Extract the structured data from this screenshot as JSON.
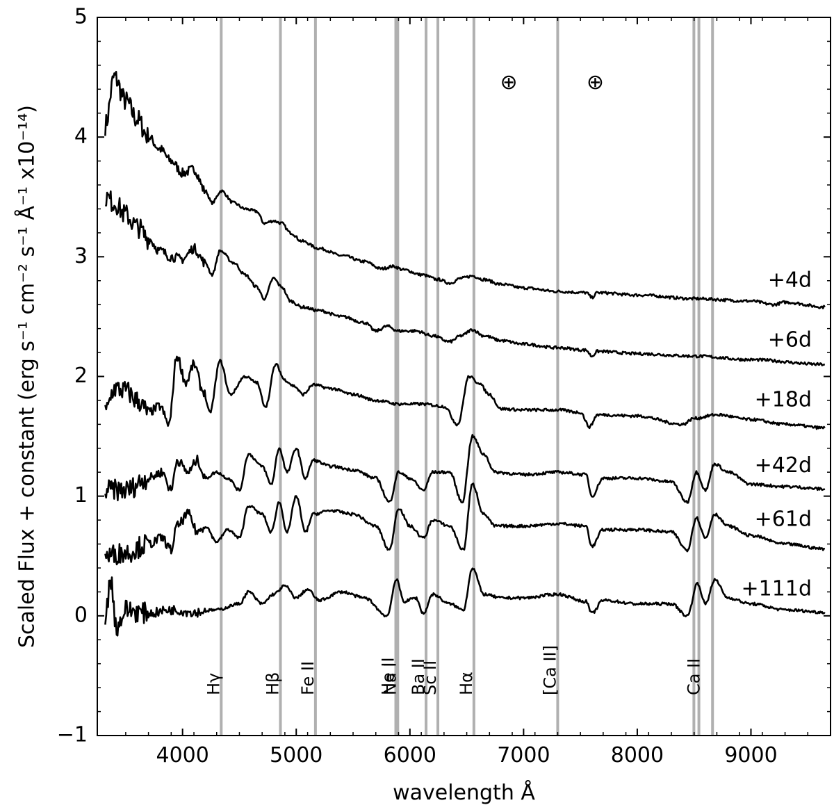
{
  "chart_data": {
    "type": "line",
    "xlabel": "wavelength Å",
    "ylabel": "Scaled Flux + constant (erg s⁻¹ cm⁻² s⁻¹ Å⁻¹ x10⁻¹⁴)",
    "xlim": [
      3250,
      9700
    ],
    "ylim": [
      -1,
      5
    ],
    "x_ticks": [
      4000,
      5000,
      6000,
      7000,
      8000,
      9000
    ],
    "y_ticks": [
      -1,
      0,
      1,
      2,
      3,
      4,
      5
    ],
    "grid": false,
    "line_color": "#000000",
    "marker_color": "#b0b0b0",
    "line_markers": [
      {
        "label": "Hγ",
        "x": [
          4340
        ]
      },
      {
        "label": "Hβ",
        "x": [
          4861
        ]
      },
      {
        "label": "Fe II",
        "x": [
          5169
        ]
      },
      {
        "label": "He II",
        "x": [
          5876
        ]
      },
      {
        "label": "Na I",
        "x": [
          5893
        ]
      },
      {
        "label": "Ba II",
        "x": [
          6142
        ]
      },
      {
        "label": "Sc II",
        "x": [
          6246
        ]
      },
      {
        "label": "Hα",
        "x": [
          6563
        ]
      },
      {
        "label": "[Ca II]",
        "x": [
          7300
        ]
      },
      {
        "label": "Ca II",
        "x": [
          8498,
          8542,
          8662
        ]
      }
    ],
    "telluric": [
      {
        "symbol": "⊕",
        "x": 6870,
        "y": 4.45
      },
      {
        "symbol": "⊕",
        "x": 7630,
        "y": 4.45
      }
    ],
    "series": [
      {
        "name": "+4d",
        "label_y": 2.8,
        "points": [
          [
            3320,
            4.1
          ],
          [
            3400,
            4.5
          ],
          [
            3500,
            4.3
          ],
          [
            3600,
            4.15
          ],
          [
            3700,
            4.0
          ],
          [
            3800,
            3.9
          ],
          [
            3900,
            3.8
          ],
          [
            4000,
            3.7
          ],
          [
            4100,
            3.73
          ],
          [
            4200,
            3.55
          ],
          [
            4260,
            3.45
          ],
          [
            4340,
            3.55
          ],
          [
            4450,
            3.45
          ],
          [
            4550,
            3.4
          ],
          [
            4650,
            3.38
          ],
          [
            4720,
            3.28
          ],
          [
            4800,
            3.3
          ],
          [
            4870,
            3.28
          ],
          [
            4950,
            3.2
          ],
          [
            5050,
            3.13
          ],
          [
            5200,
            3.07
          ],
          [
            5400,
            3.01
          ],
          [
            5600,
            2.96
          ],
          [
            5750,
            2.9
          ],
          [
            5850,
            2.92
          ],
          [
            5950,
            2.89
          ],
          [
            6100,
            2.85
          ],
          [
            6250,
            2.81
          ],
          [
            6350,
            2.78
          ],
          [
            6450,
            2.82
          ],
          [
            6550,
            2.84
          ],
          [
            6650,
            2.81
          ],
          [
            6800,
            2.77
          ],
          [
            7000,
            2.74
          ],
          [
            7300,
            2.71
          ],
          [
            7550,
            2.7
          ],
          [
            7600,
            2.66
          ],
          [
            7650,
            2.7
          ],
          [
            8000,
            2.68
          ],
          [
            8500,
            2.65
          ],
          [
            9000,
            2.63
          ],
          [
            9200,
            2.6
          ],
          [
            9300,
            2.62
          ],
          [
            9650,
            2.58
          ]
        ]
      },
      {
        "name": "+6d",
        "label_y": 2.3,
        "points": [
          [
            3320,
            3.5
          ],
          [
            3400,
            3.45
          ],
          [
            3500,
            3.35
          ],
          [
            3600,
            3.25
          ],
          [
            3700,
            3.15
          ],
          [
            3800,
            3.05
          ],
          [
            3900,
            3.0
          ],
          [
            4000,
            2.98
          ],
          [
            4100,
            3.07
          ],
          [
            4200,
            2.95
          ],
          [
            4260,
            2.85
          ],
          [
            4330,
            3.05
          ],
          [
            4450,
            2.95
          ],
          [
            4550,
            2.85
          ],
          [
            4650,
            2.75
          ],
          [
            4720,
            2.65
          ],
          [
            4800,
            2.82
          ],
          [
            4870,
            2.75
          ],
          [
            4950,
            2.63
          ],
          [
            5050,
            2.58
          ],
          [
            5200,
            2.55
          ],
          [
            5400,
            2.5
          ],
          [
            5600,
            2.45
          ],
          [
            5700,
            2.38
          ],
          [
            5800,
            2.42
          ],
          [
            5900,
            2.38
          ],
          [
            6050,
            2.38
          ],
          [
            6200,
            2.34
          ],
          [
            6350,
            2.29
          ],
          [
            6450,
            2.34
          ],
          [
            6550,
            2.39
          ],
          [
            6650,
            2.34
          ],
          [
            6800,
            2.3
          ],
          [
            7000,
            2.27
          ],
          [
            7300,
            2.24
          ],
          [
            7550,
            2.22
          ],
          [
            7600,
            2.17
          ],
          [
            7650,
            2.21
          ],
          [
            8000,
            2.19
          ],
          [
            8500,
            2.17
          ],
          [
            9000,
            2.14
          ],
          [
            9650,
            2.1
          ]
        ]
      },
      {
        "name": "+18d",
        "label_y": 1.8,
        "points": [
          [
            3320,
            1.7
          ],
          [
            3400,
            1.9
          ],
          [
            3500,
            1.88
          ],
          [
            3600,
            1.8
          ],
          [
            3700,
            1.7
          ],
          [
            3800,
            1.75
          ],
          [
            3880,
            1.6
          ],
          [
            3950,
            2.17
          ],
          [
            4030,
            1.95
          ],
          [
            4100,
            2.1
          ],
          [
            4180,
            1.88
          ],
          [
            4240,
            1.7
          ],
          [
            4330,
            2.13
          ],
          [
            4420,
            1.85
          ],
          [
            4550,
            2.0
          ],
          [
            4650,
            1.95
          ],
          [
            4730,
            1.75
          ],
          [
            4820,
            2.1
          ],
          [
            4900,
            1.97
          ],
          [
            4980,
            1.92
          ],
          [
            5060,
            1.85
          ],
          [
            5150,
            1.93
          ],
          [
            5300,
            1.9
          ],
          [
            5500,
            1.85
          ],
          [
            5700,
            1.8
          ],
          [
            5900,
            1.77
          ],
          [
            6100,
            1.77
          ],
          [
            6300,
            1.75
          ],
          [
            6420,
            1.6
          ],
          [
            6520,
            2.0
          ],
          [
            6600,
            1.95
          ],
          [
            6700,
            1.85
          ],
          [
            6800,
            1.73
          ],
          [
            7000,
            1.72
          ],
          [
            7300,
            1.72
          ],
          [
            7500,
            1.7
          ],
          [
            7580,
            1.58
          ],
          [
            7650,
            1.68
          ],
          [
            8000,
            1.67
          ],
          [
            8400,
            1.6
          ],
          [
            8500,
            1.65
          ],
          [
            8700,
            1.68
          ],
          [
            9000,
            1.64
          ],
          [
            9300,
            1.6
          ],
          [
            9650,
            1.57
          ]
        ]
      },
      {
        "name": "+42d",
        "label_y": 1.25,
        "points": [
          [
            3320,
            1.05
          ],
          [
            3500,
            1.05
          ],
          [
            3700,
            1.15
          ],
          [
            3820,
            1.2
          ],
          [
            3900,
            1.05
          ],
          [
            3950,
            1.3
          ],
          [
            4050,
            1.2
          ],
          [
            4130,
            1.3
          ],
          [
            4200,
            1.15
          ],
          [
            4300,
            1.2
          ],
          [
            4400,
            1.15
          ],
          [
            4500,
            1.05
          ],
          [
            4580,
            1.35
          ],
          [
            4700,
            1.25
          ],
          [
            4780,
            1.1
          ],
          [
            4850,
            1.4
          ],
          [
            4920,
            1.2
          ],
          [
            5000,
            1.4
          ],
          [
            5080,
            1.15
          ],
          [
            5150,
            1.3
          ],
          [
            5300,
            1.25
          ],
          [
            5500,
            1.22
          ],
          [
            5700,
            1.15
          ],
          [
            5820,
            0.95
          ],
          [
            5900,
            1.2
          ],
          [
            6000,
            1.15
          ],
          [
            6120,
            1.05
          ],
          [
            6200,
            1.2
          ],
          [
            6350,
            1.2
          ],
          [
            6460,
            0.95
          ],
          [
            6550,
            1.5
          ],
          [
            6650,
            1.35
          ],
          [
            6750,
            1.2
          ],
          [
            7000,
            1.18
          ],
          [
            7300,
            1.2
          ],
          [
            7550,
            1.18
          ],
          [
            7600,
            1.0
          ],
          [
            7700,
            1.15
          ],
          [
            8000,
            1.15
          ],
          [
            8300,
            1.12
          ],
          [
            8440,
            0.95
          ],
          [
            8520,
            1.2
          ],
          [
            8600,
            1.05
          ],
          [
            8680,
            1.27
          ],
          [
            8800,
            1.2
          ],
          [
            9000,
            1.1
          ],
          [
            9300,
            1.08
          ],
          [
            9650,
            1.06
          ]
        ]
      },
      {
        "name": "+61d",
        "label_y": 0.8,
        "points": [
          [
            3320,
            0.5
          ],
          [
            3500,
            0.53
          ],
          [
            3700,
            0.6
          ],
          [
            3820,
            0.65
          ],
          [
            3900,
            0.55
          ],
          [
            3950,
            0.75
          ],
          [
            4050,
            0.85
          ],
          [
            4130,
            0.7
          ],
          [
            4200,
            0.75
          ],
          [
            4300,
            0.62
          ],
          [
            4400,
            0.72
          ],
          [
            4500,
            0.65
          ],
          [
            4580,
            0.92
          ],
          [
            4700,
            0.85
          ],
          [
            4780,
            0.7
          ],
          [
            4850,
            0.95
          ],
          [
            4920,
            0.7
          ],
          [
            5000,
            1.0
          ],
          [
            5080,
            0.7
          ],
          [
            5150,
            0.85
          ],
          [
            5300,
            0.88
          ],
          [
            5500,
            0.85
          ],
          [
            5700,
            0.75
          ],
          [
            5820,
            0.55
          ],
          [
            5900,
            0.9
          ],
          [
            6000,
            0.75
          ],
          [
            6120,
            0.65
          ],
          [
            6200,
            0.8
          ],
          [
            6350,
            0.75
          ],
          [
            6470,
            0.55
          ],
          [
            6550,
            1.1
          ],
          [
            6650,
            0.85
          ],
          [
            6750,
            0.75
          ],
          [
            7000,
            0.75
          ],
          [
            7300,
            0.77
          ],
          [
            7550,
            0.75
          ],
          [
            7600,
            0.58
          ],
          [
            7700,
            0.72
          ],
          [
            8000,
            0.72
          ],
          [
            8300,
            0.7
          ],
          [
            8440,
            0.55
          ],
          [
            8520,
            0.82
          ],
          [
            8600,
            0.65
          ],
          [
            8680,
            0.85
          ],
          [
            8800,
            0.75
          ],
          [
            9000,
            0.67
          ],
          [
            9300,
            0.6
          ],
          [
            9650,
            0.56
          ]
        ]
      },
      {
        "name": "+111d",
        "label_y": 0.22,
        "points": [
          [
            3320,
            0.0
          ],
          [
            3370,
            0.3
          ],
          [
            3420,
            -0.1
          ],
          [
            3500,
            0.05
          ],
          [
            3700,
            0.02
          ],
          [
            3900,
            0.05
          ],
          [
            4100,
            0.03
          ],
          [
            4300,
            0.05
          ],
          [
            4500,
            0.1
          ],
          [
            4580,
            0.2
          ],
          [
            4700,
            0.1
          ],
          [
            4800,
            0.18
          ],
          [
            4900,
            0.25
          ],
          [
            5000,
            0.15
          ],
          [
            5100,
            0.22
          ],
          [
            5200,
            0.13
          ],
          [
            5400,
            0.2
          ],
          [
            5600,
            0.15
          ],
          [
            5800,
            0.0
          ],
          [
            5880,
            0.3
          ],
          [
            5950,
            0.12
          ],
          [
            6050,
            0.15
          ],
          [
            6120,
            0.02
          ],
          [
            6200,
            0.18
          ],
          [
            6350,
            0.1
          ],
          [
            6470,
            0.05
          ],
          [
            6550,
            0.4
          ],
          [
            6650,
            0.18
          ],
          [
            6800,
            0.15
          ],
          [
            7000,
            0.15
          ],
          [
            7300,
            0.18
          ],
          [
            7550,
            0.12
          ],
          [
            7600,
            0.02
          ],
          [
            7700,
            0.13
          ],
          [
            8000,
            0.1
          ],
          [
            8300,
            0.1
          ],
          [
            8440,
            0.0
          ],
          [
            8530,
            0.27
          ],
          [
            8600,
            0.1
          ],
          [
            8680,
            0.3
          ],
          [
            8800,
            0.15
          ],
          [
            9000,
            0.1
          ],
          [
            9300,
            0.05
          ],
          [
            9650,
            0.03
          ]
        ]
      }
    ]
  }
}
